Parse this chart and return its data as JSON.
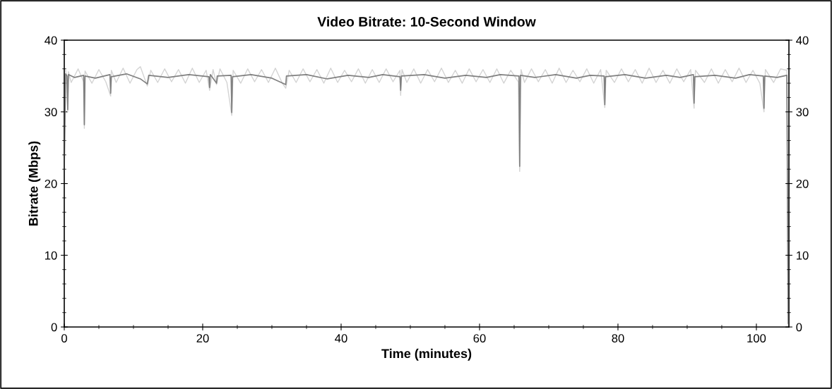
{
  "chart_data": {
    "type": "line",
    "title": "Video Bitrate: 10-Second Window",
    "xlabel": "Time (minutes)",
    "ylabel": "Bitrate (Mbps)",
    "xlim": [
      0,
      104.7
    ],
    "xticks": [
      0,
      20,
      40,
      60,
      80,
      100
    ],
    "ylim": [
      0,
      40
    ],
    "yticks": [
      0,
      10,
      20,
      30,
      40
    ],
    "y2lim": [
      0,
      40
    ],
    "y2ticks": [
      0,
      10,
      20,
      30,
      40
    ],
    "grid": false,
    "legend": false,
    "marker": "none",
    "line_style": "solid",
    "series": [
      {
        "color": "#d3d3d3",
        "x": [
          0.2,
          0.4,
          0.5,
          0.6,
          1,
          2,
          2.8,
          2.9,
          3.0,
          4,
          5,
          6,
          6.7,
          6.8,
          7.5,
          8.5,
          9.5,
          10.5,
          11,
          12,
          12.5,
          13.5,
          14.5,
          15.5,
          16.5,
          17.5,
          18.5,
          19.5,
          20.5,
          21.0,
          21.5,
          22.0,
          22.5,
          23.5,
          24.2,
          24.4,
          25.5,
          26.5,
          27.5,
          28.5,
          29.5,
          30.5,
          31.5,
          32,
          32.5,
          33.5,
          34.5,
          35.5,
          36.5,
          37.5,
          38.5,
          39.5,
          40.5,
          41.5,
          42.5,
          43.5,
          44.5,
          45.5,
          46.5,
          47.5,
          48.5,
          48.6,
          48.8,
          49.5,
          50.5,
          51.5,
          52.5,
          53.5,
          54.5,
          55.5,
          56.5,
          57.5,
          58.5,
          59.5,
          60.5,
          61.5,
          62.5,
          63.5,
          64.5,
          65.6,
          65.8,
          66.0,
          66.5,
          67.5,
          68.5,
          69.5,
          70.5,
          71.5,
          72.5,
          73.5,
          74.5,
          75.5,
          76.5,
          77.5,
          78.1,
          78.3,
          79.5,
          80.5,
          81.5,
          82.5,
          83.5,
          84.5,
          85.5,
          86.5,
          87.5,
          88.5,
          89.5,
          90.5,
          91.0,
          91.2,
          92.5,
          93.5,
          94.5,
          95.5,
          96.5,
          97.5,
          98.5,
          99.5,
          100.5,
          101.1,
          101.3,
          102.5,
          103.5,
          104.4,
          104.6
        ],
        "values": [
          35.8,
          34.2,
          30.0,
          35.6,
          34.1,
          36.0,
          34.2,
          27.7,
          35.7,
          34.0,
          35.9,
          34.2,
          32.2,
          35.8,
          34.1,
          36.1,
          34.0,
          35.9,
          36.3,
          33.6,
          35.8,
          34.1,
          36.0,
          34.2,
          35.9,
          34.0,
          36.1,
          34.1,
          35.8,
          33.0,
          35.9,
          33.8,
          36.0,
          34.1,
          29.5,
          35.8,
          34.0,
          36.0,
          34.2,
          35.9,
          34.1,
          36.1,
          34.0,
          33.3,
          35.8,
          34.1,
          36.0,
          34.2,
          35.9,
          34.0,
          36.1,
          34.1,
          35.8,
          34.2,
          36.0,
          34.0,
          35.9,
          34.1,
          36.0,
          34.2,
          35.8,
          32.3,
          35.9,
          34.1,
          36.0,
          34.0,
          35.9,
          34.2,
          36.1,
          34.1,
          35.8,
          34.0,
          36.0,
          34.2,
          35.9,
          34.1,
          36.0,
          34.0,
          35.8,
          34.2,
          21.7,
          35.9,
          34.1,
          36.0,
          34.2,
          35.9,
          34.0,
          36.1,
          34.1,
          35.8,
          34.2,
          36.0,
          34.0,
          35.9,
          30.6,
          35.8,
          34.1,
          36.0,
          34.2,
          35.9,
          34.0,
          36.1,
          34.1,
          35.8,
          34.0,
          36.0,
          34.2,
          35.9,
          30.5,
          35.8,
          34.1,
          36.0,
          34.0,
          35.9,
          34.2,
          36.1,
          34.1,
          35.8,
          34.0,
          30.0,
          35.9,
          34.1,
          36.0,
          35.8,
          0.0
        ]
      },
      {
        "color": "#808080",
        "x": [
          0,
          0.2,
          0.4,
          0.5,
          0.6,
          1.5,
          2.8,
          2.9,
          3.0,
          4.5,
          6.6,
          6.7,
          6.8,
          9,
          11,
          12,
          12.2,
          15,
          18,
          20.9,
          21.0,
          21.1,
          22.0,
          22.1,
          24.1,
          24.2,
          24.3,
          27,
          30,
          32,
          32.1,
          35,
          38,
          41,
          44,
          46,
          48.5,
          48.6,
          48.7,
          52,
          55,
          58,
          61,
          63,
          65.7,
          65.8,
          65.9,
          68,
          71,
          74,
          76,
          78.0,
          78.1,
          78.2,
          81,
          84,
          87,
          89,
          90.9,
          91.0,
          91.1,
          94,
          97,
          99,
          101.0,
          101.1,
          101.2,
          103,
          104.4,
          104.6
        ],
        "values": [
          21.8,
          35.3,
          35.0,
          30.3,
          35.2,
          34.8,
          35.1,
          28.2,
          35.0,
          34.7,
          35.2,
          32.6,
          34.9,
          35.3,
          34.6,
          33.9,
          35.1,
          34.8,
          35.2,
          34.9,
          33.4,
          35.2,
          34.0,
          35.0,
          35.1,
          29.9,
          34.9,
          35.2,
          34.7,
          33.8,
          35.0,
          35.2,
          34.6,
          35.1,
          34.8,
          35.2,
          34.9,
          33.0,
          35.0,
          35.2,
          34.7,
          35.1,
          34.8,
          35.2,
          35.0,
          22.4,
          35.1,
          34.8,
          35.2,
          34.7,
          35.1,
          35.0,
          31.0,
          34.9,
          35.2,
          34.7,
          35.1,
          34.8,
          35.2,
          31.2,
          34.9,
          35.1,
          34.7,
          35.2,
          35.0,
          30.5,
          35.0,
          34.8,
          35.1,
          0.5
        ]
      }
    ]
  }
}
